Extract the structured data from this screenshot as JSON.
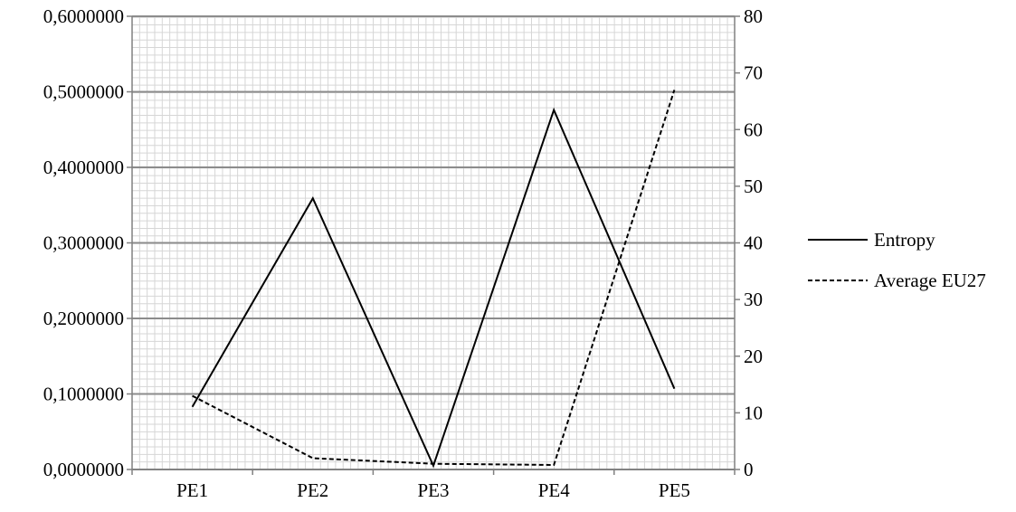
{
  "chart_data": {
    "type": "line",
    "title": "",
    "xlabel": "",
    "ylabel": "",
    "y2label": "",
    "categories": [
      "PE1",
      "PE2",
      "PE3",
      "PE4",
      "PE5"
    ],
    "left_axis": {
      "ylim": [
        0,
        0.6
      ],
      "ticks": [
        0,
        0.1,
        0.2,
        0.3,
        0.4,
        0.5,
        0.6
      ],
      "tick_labels": [
        "0,0000000",
        "0,1000000",
        "0,2000000",
        "0,3000000",
        "0,4000000",
        "0,5000000",
        "0,6000000"
      ]
    },
    "right_axis": {
      "ylim": [
        0,
        80
      ],
      "ticks": [
        0,
        10,
        20,
        30,
        40,
        50,
        60,
        70,
        80
      ],
      "tick_labels": [
        "0",
        "10",
        "20",
        "30",
        "40",
        "50",
        "60",
        "70",
        "80"
      ]
    },
    "series": [
      {
        "name": "Entropy",
        "axis": "left",
        "line_style": "solid",
        "color": "#000000",
        "values": [
          0.083,
          0.359,
          0.005,
          0.476,
          0.107
        ]
      },
      {
        "name": "Average EU27",
        "axis": "right",
        "line_style": "dashed",
        "color": "#000000",
        "values": [
          13,
          2,
          1,
          0.8,
          67
        ]
      }
    ],
    "grid": true,
    "grid_colors": {
      "major": "#8c8c8c",
      "minor": "#d6d6d6"
    },
    "legend": {
      "position": "right"
    }
  }
}
